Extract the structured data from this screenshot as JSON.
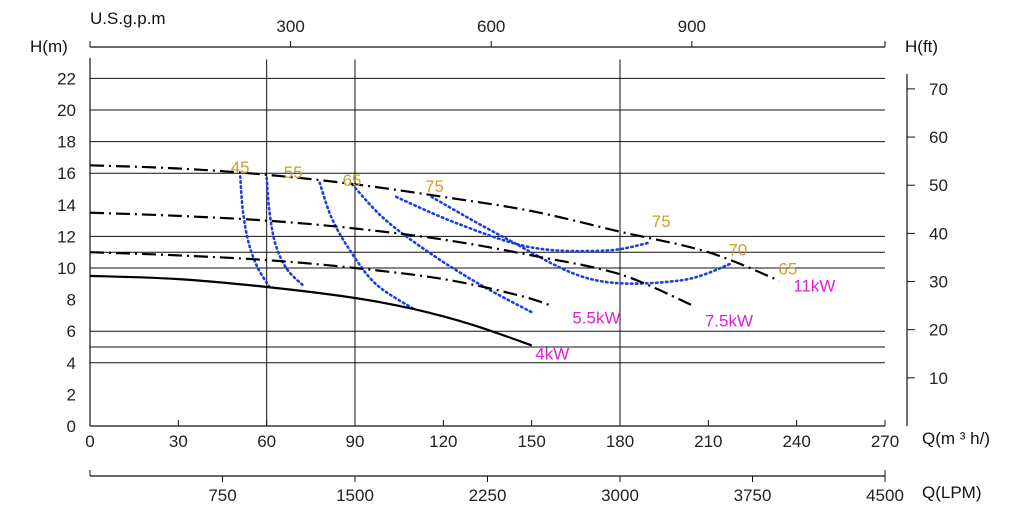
{
  "chart_data": {
    "type": "line",
    "title": "",
    "axes": {
      "x_m3h": {
        "label": "Q(m ³ h/)",
        "range": [
          0,
          270
        ],
        "ticks": [
          0,
          30,
          60,
          90,
          120,
          150,
          180,
          210,
          240,
          270
        ]
      },
      "x_lpm": {
        "label": "Q(LPM)",
        "range": [
          0,
          4500
        ],
        "ticks": [
          750,
          1500,
          2250,
          3000,
          3750,
          4500
        ]
      },
      "x_usgpm": {
        "label": "U.S.g.p.m",
        "ticks": [
          300,
          600,
          900
        ]
      },
      "y_m": {
        "label": "H(m)",
        "range": [
          0,
          23
        ],
        "ticks": [
          0,
          2,
          4,
          6,
          8,
          10,
          12,
          14,
          16,
          18,
          20,
          22
        ]
      },
      "y_ft": {
        "label": "H(ft)",
        "range": [
          0,
          75.5
        ],
        "ticks": [
          10,
          20,
          30,
          40,
          50,
          60,
          70
        ]
      }
    },
    "grid": {
      "horizontal_m": [
        4,
        5,
        6,
        10,
        11,
        12,
        16,
        18,
        20,
        22
      ],
      "vertical_m3h": [
        60,
        90,
        180
      ]
    },
    "series": [
      {
        "name": "4kW",
        "style": "solid",
        "color": "#000000",
        "x": [
          0,
          30,
          60,
          90,
          110,
          130,
          150
        ],
        "y": [
          9.5,
          9.3,
          8.8,
          8.1,
          7.4,
          6.4,
          5.1
        ]
      },
      {
        "name": "5.5kW",
        "style": "dash-dot",
        "color": "#000000",
        "x": [
          0,
          30,
          60,
          90,
          120,
          145,
          157
        ],
        "y": [
          11.0,
          10.8,
          10.5,
          10.0,
          9.3,
          8.3,
          7.6
        ]
      },
      {
        "name": "7.5kW",
        "style": "dash-dot",
        "color": "#000000",
        "x": [
          0,
          30,
          60,
          90,
          120,
          150,
          180,
          205
        ],
        "y": [
          13.5,
          13.3,
          13.0,
          12.5,
          11.8,
          10.8,
          9.6,
          7.6
        ]
      },
      {
        "name": "11kW",
        "style": "dash-dot",
        "color": "#000000",
        "x": [
          0,
          30,
          60,
          90,
          120,
          150,
          180,
          210,
          234
        ],
        "y": [
          16.5,
          16.3,
          15.9,
          15.3,
          14.5,
          13.6,
          12.3,
          11.0,
          9.2
        ]
      }
    ],
    "iso_efficiency": [
      {
        "label": "45",
        "x": [
          51,
          52,
          54,
          57,
          61
        ],
        "y": [
          15.8,
          13.5,
          11.5,
          10.0,
          8.8
        ]
      },
      {
        "label": "55",
        "x": [
          60,
          61,
          63,
          67,
          73
        ],
        "y": [
          15.7,
          13.5,
          11.5,
          9.9,
          8.8
        ]
      },
      {
        "label": "65",
        "x": [
          78,
          82,
          88,
          97,
          110
        ],
        "y": [
          15.4,
          13.2,
          11.2,
          9.0,
          7.4
        ]
      },
      {
        "label": "75 (outer)",
        "x": [
          89,
          100,
          115,
          132,
          150
        ],
        "y": [
          15.3,
          13.1,
          11.0,
          9.0,
          7.2
        ]
      },
      {
        "label": "75",
        "x": [
          104,
          125,
          150,
          175,
          190
        ],
        "y": [
          14.5,
          12.8,
          11.3,
          11.1,
          11.6
        ]
      },
      {
        "label": "70",
        "x": [
          116,
          140,
          170,
          200,
          218
        ],
        "y": [
          14.5,
          12.0,
          9.3,
          9.2,
          10.3
        ]
      }
    ],
    "annotations": {
      "efficiency": [
        {
          "text": "45",
          "x": 51,
          "y": 16.0
        },
        {
          "text": "55",
          "x": 69,
          "y": 15.7
        },
        {
          "text": "65",
          "x": 89,
          "y": 15.2
        },
        {
          "text": "75",
          "x": 117,
          "y": 14.8
        },
        {
          "text": "75",
          "x": 194,
          "y": 12.6
        },
        {
          "text": "70",
          "x": 220,
          "y": 10.8
        },
        {
          "text": "65",
          "x": 237,
          "y": 9.6
        }
      ],
      "power": [
        {
          "text": "4kW",
          "x": 157,
          "y": 4.2
        },
        {
          "text": "5.5kW",
          "x": 172,
          "y": 6.5
        },
        {
          "text": "7.5kW",
          "x": 217,
          "y": 6.3
        },
        {
          "text": "11kW",
          "x": 246,
          "y": 8.5
        }
      ]
    }
  }
}
